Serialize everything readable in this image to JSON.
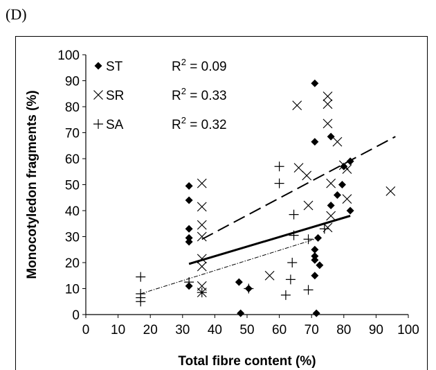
{
  "panel_label": "(D)",
  "chart_data": {
    "type": "scatter",
    "title": "",
    "xlabel": "Total fibre content (%)",
    "ylabel": "Monocotyledon fragments (%)",
    "xlim": [
      0,
      100
    ],
    "ylim": [
      0,
      100
    ],
    "xticks": [
      0,
      10,
      20,
      30,
      40,
      50,
      60,
      70,
      80,
      90,
      100
    ],
    "yticks": [
      0,
      10,
      20,
      30,
      40,
      50,
      60,
      70,
      80,
      90,
      100
    ],
    "grid": false,
    "legend_position": "top-left",
    "series": [
      {
        "name": "ST",
        "marker": "diamond",
        "r2_label": "R² = 0.09",
        "trendline": {
          "style": "solid",
          "x": [
            32,
            82
          ],
          "y": [
            19.5,
            38
          ]
        },
        "points": [
          [
            32,
            49.5
          ],
          [
            32,
            44
          ],
          [
            32,
            33
          ],
          [
            32,
            29.5
          ],
          [
            32,
            28
          ],
          [
            32,
            11
          ],
          [
            47.5,
            12.5
          ],
          [
            48,
            0.5
          ],
          [
            50.5,
            10
          ],
          [
            71,
            89
          ],
          [
            71,
            66.5
          ],
          [
            71,
            25
          ],
          [
            71,
            22.5
          ],
          [
            71,
            21
          ],
          [
            71,
            15
          ],
          [
            71.5,
            0.5
          ],
          [
            72,
            29.5
          ],
          [
            72.5,
            19
          ],
          [
            76,
            68.5
          ],
          [
            76,
            42
          ],
          [
            78,
            46
          ],
          [
            79.5,
            50
          ],
          [
            80,
            57
          ],
          [
            82,
            59
          ],
          [
            82,
            40
          ]
        ]
      },
      {
        "name": "SR",
        "marker": "x",
        "r2_label": "R² = 0.33",
        "trendline": {
          "style": "dashed",
          "x": [
            36,
            96
          ],
          "y": [
            29,
            68.5
          ]
        },
        "points": [
          [
            36,
            50.5
          ],
          [
            36,
            41.5
          ],
          [
            36,
            34.5
          ],
          [
            36,
            30
          ],
          [
            36,
            21.5
          ],
          [
            36,
            18.5
          ],
          [
            36,
            11
          ],
          [
            36,
            8.5
          ],
          [
            57,
            15
          ],
          [
            65.5,
            80.5
          ],
          [
            66,
            56.5
          ],
          [
            68.5,
            53.5
          ],
          [
            69,
            42
          ],
          [
            75,
            84
          ],
          [
            75,
            81
          ],
          [
            75,
            73.5
          ],
          [
            75,
            33.5
          ],
          [
            76,
            50.5
          ],
          [
            76,
            38
          ],
          [
            78,
            66.5
          ],
          [
            80,
            57.5
          ],
          [
            81,
            56
          ],
          [
            81,
            44.5
          ],
          [
            94.5,
            47.5
          ]
        ]
      },
      {
        "name": "SA",
        "marker": "plus",
        "r2_label": "R² = 0.32",
        "trendline": {
          "style": "dotdash",
          "x": [
            17,
            71
          ],
          "y": [
            8,
            29
          ]
        },
        "points": [
          [
            17,
            14.5
          ],
          [
            17,
            8
          ],
          [
            17,
            6.5
          ],
          [
            17,
            5
          ],
          [
            32,
            12.5
          ],
          [
            36,
            8.5
          ],
          [
            50.5,
            10
          ],
          [
            60,
            57
          ],
          [
            60,
            50.5
          ],
          [
            62,
            7.5
          ],
          [
            63.5,
            13.5
          ],
          [
            64,
            20
          ],
          [
            64.5,
            38.5
          ],
          [
            64.5,
            30.5
          ],
          [
            69,
            9.5
          ],
          [
            69,
            29
          ],
          [
            74,
            33
          ]
        ]
      }
    ]
  }
}
